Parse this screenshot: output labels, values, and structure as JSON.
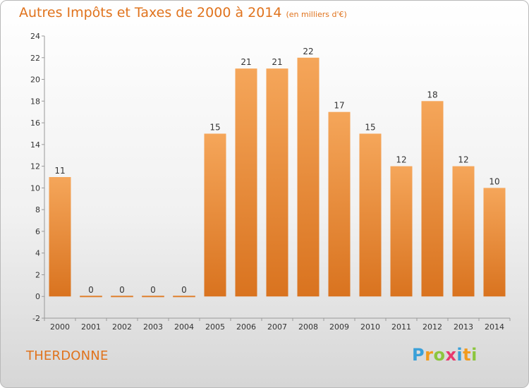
{
  "title": "Autres Impôts et Taxes de 2000 à 2014",
  "subtitle": "(en milliers d'€)",
  "commune": "THERDONNE",
  "logo": {
    "text": "Proxiti",
    "colors": [
      "#3aa0d8",
      "#f29b1d",
      "#8cc63e",
      "#e83a6e",
      "#3aa0d8",
      "#f29b1d",
      "#8cc63e"
    ]
  },
  "colors": {
    "accent": "#e0731d",
    "bar_light": "#f5a65a",
    "bar_dark": "#d9731f"
  },
  "chart_data": {
    "type": "bar",
    "title": "Autres Impôts et Taxes de 2000 à 2014",
    "subtitle": "(en milliers d'€)",
    "categories": [
      "2000",
      "2001",
      "2002",
      "2003",
      "2004",
      "2005",
      "2006",
      "2007",
      "2008",
      "2009",
      "2010",
      "2011",
      "2012",
      "2013",
      "2014"
    ],
    "values": [
      11,
      0,
      0,
      0,
      0,
      15,
      21,
      21,
      22,
      17,
      15,
      12,
      18,
      12,
      10
    ],
    "value_labels": [
      "11",
      "0",
      "0",
      "0",
      "0",
      "15",
      "21",
      "21",
      "22",
      "17",
      "15",
      "12",
      "18",
      "12",
      "10"
    ],
    "y_ticks": [
      "-2",
      "0",
      "2",
      "4",
      "6",
      "8",
      "10",
      "12",
      "14",
      "16",
      "18",
      "20",
      "22",
      "24"
    ],
    "ylim": [
      -2,
      24
    ],
    "grid": false,
    "legend": "none"
  }
}
